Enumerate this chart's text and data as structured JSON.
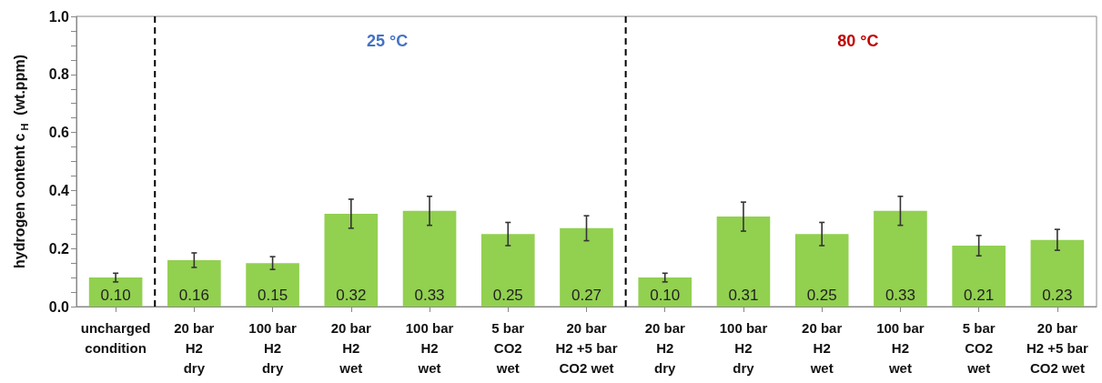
{
  "chart_data": {
    "type": "bar",
    "ylabel": "hydrogen content c$_{H}$  (wt.ppm)",
    "categories": [
      "uncharged\ncondition",
      "20 bar\nH2\ndry",
      "100 bar\nH2\ndry",
      "20 bar\nH2\nwet",
      "100 bar\nH2\nwet",
      "5 bar\nCO2\nwet",
      "20 bar\nH2 +5 bar\nCO2 wet",
      "20 bar\nH2\ndry",
      "100 bar\nH2\ndry",
      "20 bar\nH2\nwet",
      "100 bar\nH2\nwet",
      "5 bar\nCO2\nwet",
      "20 bar\nH2 +5 bar\nCO2 wet"
    ],
    "values": [
      0.1,
      0.16,
      0.15,
      0.32,
      0.33,
      0.25,
      0.27,
      0.1,
      0.31,
      0.25,
      0.33,
      0.21,
      0.23
    ],
    "value_labels": [
      "0.10",
      "0.16",
      "0.15",
      "0.32",
      "0.33",
      "0.25",
      "0.27",
      "0.10",
      "0.31",
      "0.25",
      "0.33",
      "0.21",
      "0.23"
    ],
    "errors": [
      0.015,
      0.025,
      0.022,
      0.05,
      0.05,
      0.04,
      0.043,
      0.015,
      0.05,
      0.04,
      0.05,
      0.035,
      0.036
    ],
    "color": "#92d050",
    "ylim": [
      0,
      1
    ],
    "yticks": [
      {
        "value": 0,
        "label": "0.0"
      },
      {
        "value": 0.05,
        "label": null
      },
      {
        "value": 0.1,
        "label": null
      },
      {
        "value": 0.15,
        "label": null
      },
      {
        "value": 0.2,
        "label": "0.2"
      },
      {
        "value": 0.25,
        "label": null
      },
      {
        "value": 0.3,
        "label": null
      },
      {
        "value": 0.35,
        "label": null
      },
      {
        "value": 0.4,
        "label": "0.4"
      },
      {
        "value": 0.45,
        "label": null
      },
      {
        "value": 0.5,
        "label": null
      },
      {
        "value": 0.55,
        "label": null
      },
      {
        "value": 0.6,
        "label": "0.6"
      },
      {
        "value": 0.65,
        "label": null
      },
      {
        "value": 0.7,
        "label": null
      },
      {
        "value": 0.75,
        "label": null
      },
      {
        "value": 0.8,
        "label": "0.8"
      },
      {
        "value": 0.85,
        "label": null
      },
      {
        "value": 0.9,
        "label": null
      },
      {
        "value": 0.95,
        "label": null
      },
      {
        "value": 1,
        "label": "1.0"
      }
    ],
    "annotations": [
      "25 °C",
      "80 °C"
    ],
    "grid": false
  }
}
